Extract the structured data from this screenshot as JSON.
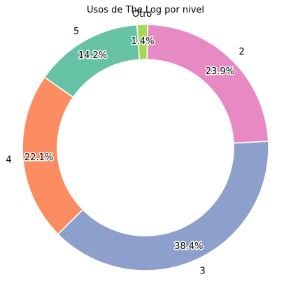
{
  "chart_data": {
    "type": "pie",
    "subtype": "donut",
    "title": "Usos de The Log por nivel",
    "start_angle_deg": 94,
    "direction": "clockwise",
    "slices": [
      {
        "label": "Otro",
        "value": 1.4,
        "display": "1.4%",
        "color": "#a6d854"
      },
      {
        "label": "2",
        "value": 23.9,
        "display": "23.9%",
        "color": "#e78ac3"
      },
      {
        "label": "3",
        "value": 38.4,
        "display": "38.4%",
        "color": "#8da0cb"
      },
      {
        "label": "4",
        "value": 22.1,
        "display": "22.1%",
        "color": "#fc8d62"
      },
      {
        "label": "5",
        "value": 14.2,
        "display": "14.2%",
        "color": "#66c2a5"
      }
    ]
  }
}
